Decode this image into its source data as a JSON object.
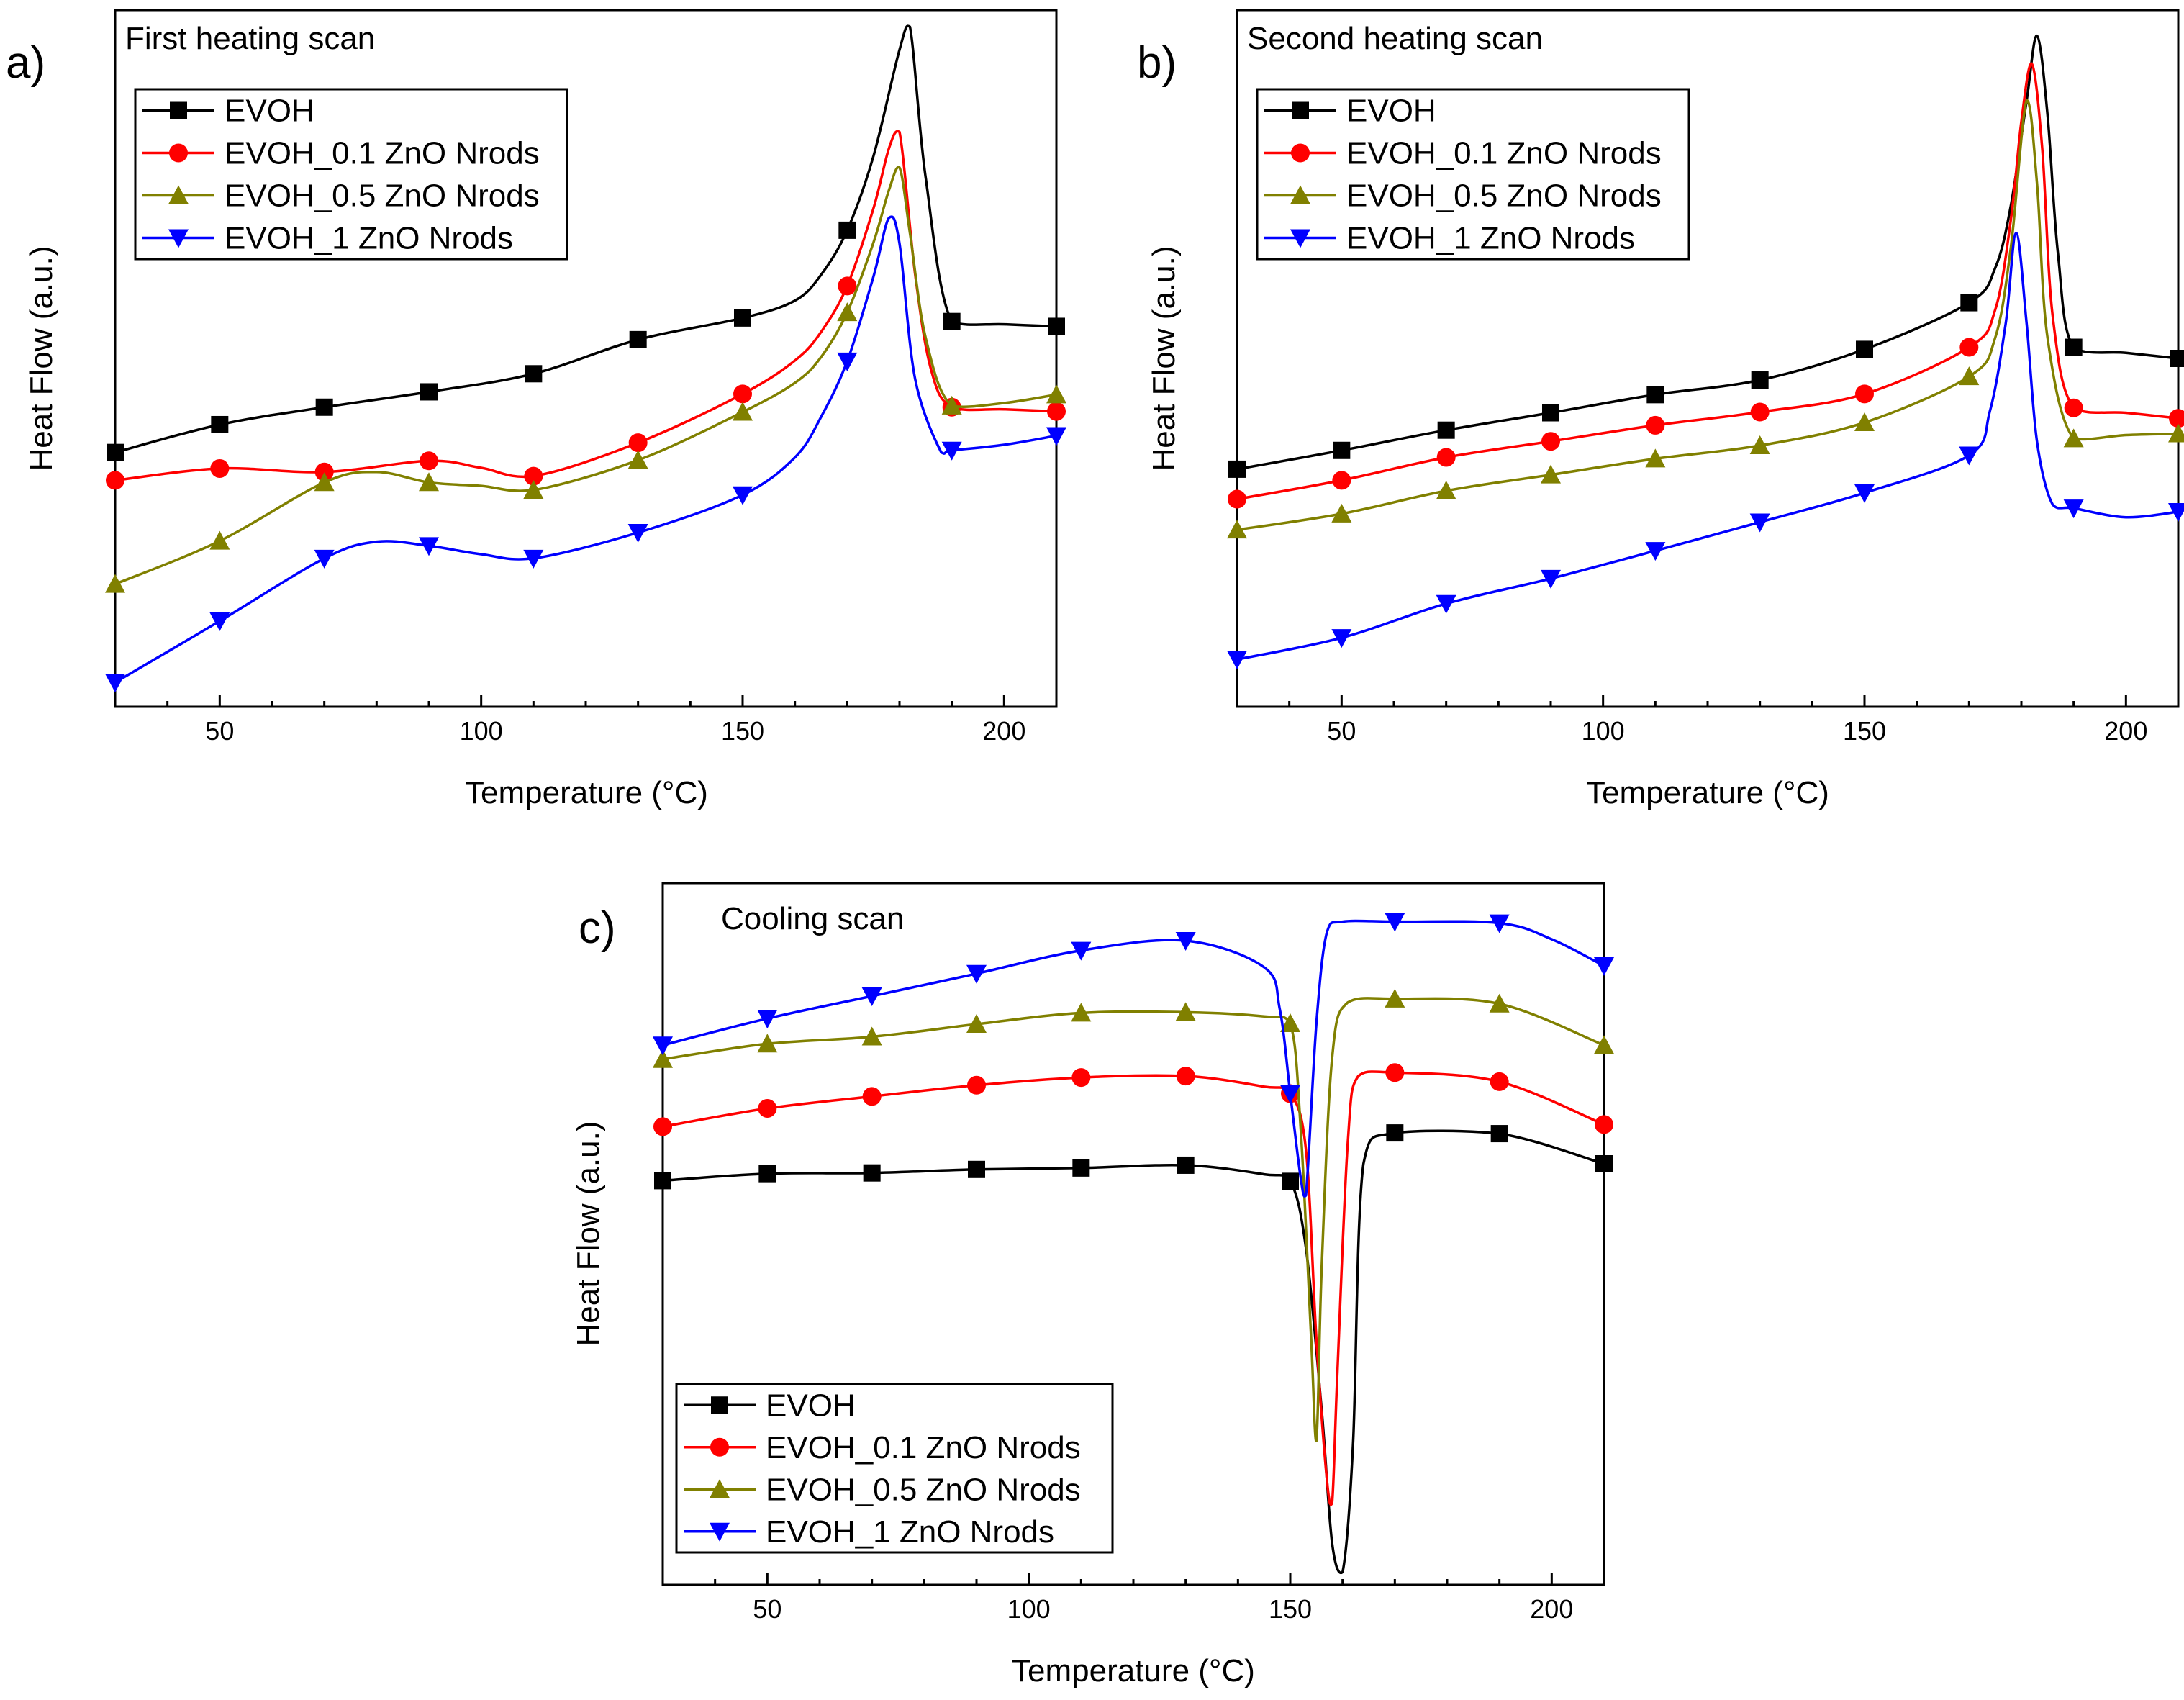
{
  "figure": {
    "panel_letters": [
      "a)",
      "b)",
      "c)"
    ]
  },
  "chart_data": [
    {
      "type": "line",
      "panel": "a)",
      "title": "First heating scan",
      "xlabel": "Temperature (°C)",
      "ylabel": "Heat Flow (a.u.)",
      "xlim": [
        30,
        210
      ],
      "ylim": [
        0,
        100
      ],
      "x_ticks": [
        50,
        100,
        150,
        200
      ],
      "y_tick_labels": false,
      "legend_position": "top-left",
      "series": [
        {
          "name": "EVOH",
          "color": "#000000",
          "marker": "square",
          "x": [
            30,
            50,
            70,
            90,
            110,
            130,
            150,
            160,
            165,
            170,
            175,
            180,
            182,
            185,
            190,
            200,
            210
          ],
          "y": [
            36.5,
            40.5,
            43.0,
            45.2,
            47.8,
            52.7,
            55.8,
            58.3,
            62.0,
            68.4,
            79.0,
            94.3,
            97.6,
            76.0,
            55.3,
            54.9,
            54.6
          ],
          "marker_x": [
            30,
            50,
            70,
            90,
            110,
            130,
            150,
            170,
            190,
            210
          ]
        },
        {
          "name": "EVOH_0.1 ZnO Nrods",
          "color": "#ff0000",
          "marker": "circle",
          "x": [
            30,
            50,
            70,
            90,
            100,
            110,
            130,
            150,
            160,
            165,
            170,
            175,
            178,
            180,
            183,
            186,
            190,
            200,
            210
          ],
          "y": [
            32.5,
            34.2,
            33.7,
            35.3,
            34.3,
            33.1,
            37.9,
            44.9,
            49.7,
            53.8,
            60.4,
            71.5,
            80.2,
            82.5,
            62.0,
            48.5,
            43.0,
            42.7,
            42.4
          ],
          "marker_x": [
            30,
            50,
            70,
            90,
            110,
            130,
            150,
            170,
            190,
            210
          ]
        },
        {
          "name": "EVOH_0.5 ZnO Nrods",
          "color": "#808000",
          "marker": "triangle-up",
          "x": [
            30,
            50,
            70,
            80,
            90,
            100,
            110,
            130,
            150,
            160,
            165,
            170,
            175,
            178,
            180,
            182,
            185,
            190,
            200,
            210
          ],
          "y": [
            17.6,
            23.8,
            32.2,
            33.7,
            32.2,
            31.7,
            31.1,
            35.4,
            42.3,
            46.5,
            50.2,
            56.6,
            66.6,
            74.2,
            77.4,
            68.0,
            53.0,
            43.2,
            43.6,
            44.8
          ],
          "marker_x": [
            30,
            50,
            70,
            90,
            110,
            130,
            150,
            170,
            190,
            210
          ]
        },
        {
          "name": "EVOH_1 ZnO Nrods",
          "color": "#0000ff",
          "marker": "triangle-down",
          "x": [
            30,
            50,
            70,
            80,
            90,
            100,
            110,
            130,
            150,
            160,
            165,
            170,
            175,
            178,
            180,
            183,
            188,
            190,
            200,
            210
          ],
          "y": [
            3.5,
            12.3,
            21.3,
            23.7,
            23.1,
            21.9,
            21.3,
            25.0,
            30.4,
            35.8,
            41.6,
            49.6,
            61.7,
            70.2,
            66.5,
            47.0,
            36.5,
            36.8,
            37.6,
            38.9
          ],
          "marker_x": [
            30,
            50,
            70,
            90,
            110,
            130,
            150,
            170,
            190,
            210
          ]
        }
      ]
    },
    {
      "type": "line",
      "panel": "b)",
      "title": "Second heating scan",
      "xlabel": "Temperature (°C)",
      "ylabel": "Heat Flow (a.u.)",
      "xlim": [
        30,
        210
      ],
      "ylim": [
        0,
        100
      ],
      "x_ticks": [
        50,
        100,
        150,
        200
      ],
      "y_tick_labels": false,
      "legend_position": "top-left",
      "series": [
        {
          "name": "EVOH",
          "color": "#000000",
          "marker": "square",
          "x": [
            30,
            50,
            70,
            90,
            110,
            130,
            150,
            170,
            175,
            178,
            181,
            183,
            185,
            187,
            190,
            200,
            210
          ],
          "y": [
            34.1,
            36.8,
            39.7,
            42.2,
            44.8,
            46.9,
            51.3,
            58.0,
            63.0,
            72.0,
            87.0,
            96.3,
            85.0,
            65.0,
            51.6,
            50.8,
            50.0
          ],
          "marker_x": [
            30,
            50,
            70,
            90,
            110,
            130,
            150,
            170,
            190,
            210
          ]
        },
        {
          "name": "EVOH_0.1 ZnO Nrods",
          "color": "#ff0000",
          "marker": "circle",
          "x": [
            30,
            50,
            70,
            90,
            110,
            130,
            150,
            170,
            175,
            178,
            180,
            182,
            184,
            186,
            190,
            200,
            210
          ],
          "y": [
            29.8,
            32.5,
            35.8,
            38.1,
            40.4,
            42.3,
            44.9,
            51.6,
            57.0,
            70.0,
            84.0,
            92.3,
            80.0,
            56.0,
            42.9,
            42.2,
            41.4
          ],
          "marker_x": [
            30,
            50,
            70,
            90,
            110,
            130,
            150,
            170,
            190,
            210
          ]
        },
        {
          "name": "EVOH_0.5 ZnO Nrods",
          "color": "#808000",
          "marker": "triangle-up",
          "x": [
            30,
            50,
            70,
            90,
            110,
            130,
            150,
            170,
            175,
            178,
            181,
            183,
            185,
            190,
            200,
            210
          ],
          "y": [
            25.4,
            27.7,
            31.0,
            33.3,
            35.6,
            37.5,
            40.8,
            47.4,
            53.0,
            66.0,
            87.0,
            75.0,
            53.0,
            38.5,
            39.0,
            39.2
          ],
          "marker_x": [
            30,
            50,
            70,
            90,
            110,
            130,
            150,
            170,
            190,
            210
          ]
        },
        {
          "name": "EVOH_1 ZnO Nrods",
          "color": "#0000ff",
          "marker": "triangle-down",
          "x": [
            30,
            50,
            70,
            90,
            110,
            130,
            150,
            170,
            174,
            177,
            179,
            181,
            183,
            186,
            190,
            200,
            210
          ],
          "y": [
            6.8,
            9.9,
            14.8,
            18.4,
            22.4,
            26.5,
            30.7,
            36.1,
            42.5,
            55.0,
            68.0,
            55.0,
            38.0,
            29.0,
            28.5,
            27.2,
            28.0
          ],
          "marker_x": [
            30,
            50,
            70,
            90,
            110,
            130,
            150,
            170,
            190,
            210
          ]
        }
      ]
    },
    {
      "type": "line",
      "panel": "c)",
      "title": "Cooling scan",
      "xlabel": "Temperature (°C)",
      "ylabel": "Heat Flow (a.u.)",
      "xlim": [
        30,
        210
      ],
      "ylim": [
        0,
        100
      ],
      "x_ticks": [
        50,
        100,
        150,
        200
      ],
      "y_tick_labels": false,
      "legend_position": "bottom-left",
      "series": [
        {
          "name": "EVOH",
          "color": "#000000",
          "marker": "square",
          "x": [
            30,
            50,
            70,
            90,
            110,
            130,
            145,
            150,
            153,
            156,
            158,
            160,
            162,
            164,
            170,
            190,
            210
          ],
          "y": [
            57.6,
            58.6,
            58.7,
            59.2,
            59.4,
            59.8,
            58.5,
            57.5,
            48.0,
            25.0,
            6.0,
            1.8,
            20.0,
            60.0,
            64.4,
            64.3,
            60.0
          ],
          "marker_x": [
            30,
            50,
            70,
            90,
            110,
            130,
            150,
            170,
            190,
            210
          ]
        },
        {
          "name": "EVOH_0.1 ZnO Nrods",
          "color": "#ff0000",
          "marker": "circle",
          "x": [
            30,
            50,
            70,
            90,
            110,
            130,
            145,
            150,
            153,
            155,
            157,
            158,
            159,
            161,
            163,
            170,
            190,
            210
          ],
          "y": [
            65.3,
            67.9,
            69.6,
            71.2,
            72.3,
            72.5,
            71.0,
            70.0,
            62.0,
            35.0,
            15.0,
            11.6,
            30.0,
            63.0,
            72.5,
            73.0,
            71.7,
            65.6
          ],
          "marker_x": [
            30,
            50,
            70,
            90,
            110,
            130,
            150,
            170,
            190,
            210
          ]
        },
        {
          "name": "EVOH_0.5 ZnO Nrods",
          "color": "#808000",
          "marker": "triangle-up",
          "x": [
            30,
            50,
            70,
            90,
            110,
            130,
            145,
            150,
            152,
            154,
            155,
            156,
            158,
            161,
            170,
            190,
            210
          ],
          "y": [
            74.9,
            77.1,
            78.1,
            79.9,
            81.5,
            81.6,
            81.0,
            80.0,
            65.0,
            35.0,
            20.5,
            45.0,
            75.0,
            83.0,
            83.5,
            82.8,
            76.9
          ],
          "marker_x": [
            30,
            50,
            70,
            90,
            110,
            130,
            150,
            170,
            190,
            210
          ]
        },
        {
          "name": "EVOH_1 ZnO Nrods",
          "color": "#0000ff",
          "marker": "triangle-down",
          "x": [
            30,
            50,
            70,
            90,
            110,
            130,
            145,
            148,
            150,
            152,
            153,
            155,
            157,
            160,
            170,
            190,
            200,
            210
          ],
          "y": [
            76.9,
            80.7,
            83.9,
            87.1,
            90.4,
            91.8,
            88.0,
            82.0,
            70.0,
            58.0,
            55.5,
            80.0,
            93.0,
            94.5,
            94.5,
            94.3,
            92.0,
            88.2
          ],
          "marker_x": [
            30,
            50,
            70,
            90,
            110,
            130,
            150,
            170,
            190,
            210
          ]
        }
      ]
    }
  ]
}
